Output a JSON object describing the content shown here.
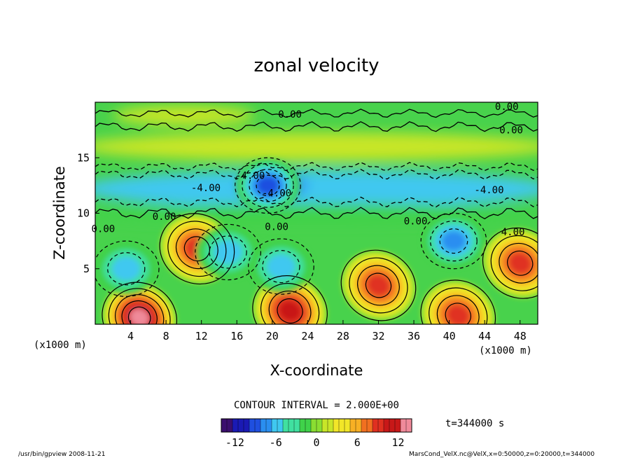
{
  "footer": {
    "left": "/usr/bin/gpview   2008-11-21",
    "right": "MarsCond_VelX.nc@VelX,x=0:50000,z=0:20000,t=344000"
  },
  "contour_interval": "CONTOUR INTERVAL = 2.000E+00",
  "time_label": "t=344000 s",
  "colors": {
    "palette": [
      "#3b0f6e",
      "#1a1ab4",
      "#1f4fe0",
      "#2a8ef0",
      "#3fc8f0",
      "#40e0a0",
      "#3fd24a",
      "#8ade32",
      "#c8e628",
      "#f2e628",
      "#f8b024",
      "#f27020",
      "#e03020",
      "#c81818",
      "#f08a9a"
    ]
  },
  "chart_data": {
    "type": "heatmap",
    "title": "zonal velocity",
    "xlabel": "X-coordinate",
    "ylabel": "Z-coordinate",
    "x_unit_label": "(x1000 m)",
    "y_unit_label": "(x1000 m)",
    "xlim": [
      0,
      50
    ],
    "ylim": [
      0,
      20
    ],
    "x_ticks": [
      4,
      8,
      12,
      16,
      20,
      24,
      28,
      32,
      36,
      40,
      44,
      48
    ],
    "y_ticks": [
      5,
      10,
      15
    ],
    "contour_labels": [
      {
        "text": "0.00",
        "x": 22,
        "z": 18.6
      },
      {
        "text": "0.00",
        "x": 46.5,
        "z": 19.3
      },
      {
        "text": "0.00",
        "x": 47,
        "z": 17.2
      },
      {
        "text": "-4.00",
        "x": 17.5,
        "z": 13.1
      },
      {
        "text": "-4.00",
        "x": 12.5,
        "z": 12.0
      },
      {
        "text": "-4.00",
        "x": 20.5,
        "z": 11.5
      },
      {
        "text": "-4.00",
        "x": 44.5,
        "z": 11.8
      },
      {
        "text": "0.00",
        "x": 0.9,
        "z": 8.3
      },
      {
        "text": "0.00",
        "x": 7.8,
        "z": 9.4
      },
      {
        "text": "0.00",
        "x": 20.5,
        "z": 8.5
      },
      {
        "text": "0.00",
        "x": 36.2,
        "z": 9.0
      },
      {
        "text": "4.00",
        "x": 47.2,
        "z": 8.0
      }
    ],
    "extrema": [
      {
        "sign": "max",
        "x": 5,
        "z": 0.6,
        "value": 14
      },
      {
        "sign": "max",
        "x": 11.5,
        "z": 6.8,
        "value": 10
      },
      {
        "sign": "max",
        "x": 22,
        "z": 1.2,
        "value": 11
      },
      {
        "sign": "max",
        "x": 32,
        "z": 3.5,
        "value": 9
      },
      {
        "sign": "max",
        "x": 48,
        "z": 5.5,
        "value": 9
      },
      {
        "sign": "max",
        "x": 41,
        "z": 0.8,
        "value": 10
      },
      {
        "sign": "min",
        "x": 3.5,
        "z": 5.0,
        "value": -6
      },
      {
        "sign": "min",
        "x": 40.5,
        "z": 7.5,
        "value": -8
      },
      {
        "sign": "min",
        "x": 21,
        "z": 5.2,
        "value": -6
      },
      {
        "sign": "min",
        "x": 19.5,
        "z": 12.5,
        "value": -9
      },
      {
        "sign": "min",
        "x": 15,
        "z": 6.5,
        "value": -5
      }
    ],
    "colorbar": {
      "ticks": [
        -12,
        -6,
        0,
        6,
        12
      ],
      "range": [
        -14,
        14
      ]
    }
  }
}
